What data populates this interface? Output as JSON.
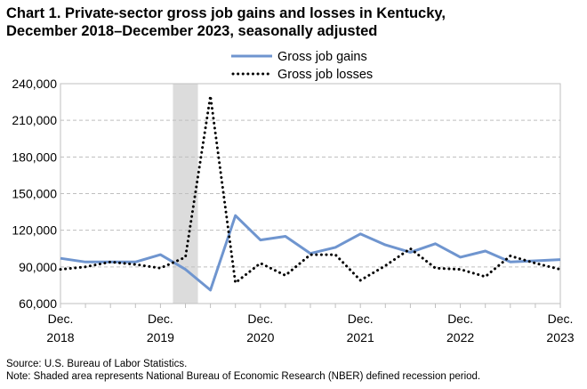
{
  "chart_data": {
    "type": "line",
    "title_line1": "Chart 1. Private-sector gross job gains and losses in Kentucky,",
    "title_line2": "December 2018–December 2023, seasonally adjusted",
    "xlabel": "",
    "ylabel": "",
    "ylim": [
      60000,
      240000
    ],
    "yticks": [
      60000,
      90000,
      120000,
      150000,
      180000,
      210000,
      240000
    ],
    "ytick_labels": [
      "60,000",
      "90,000",
      "120,000",
      "150,000",
      "180,000",
      "210,000",
      "240,000"
    ],
    "xlim": [
      0,
      20
    ],
    "xtick_labels": [
      {
        "month": "Dec.",
        "year": "2018"
      },
      {
        "month": "Dec.",
        "year": "2019"
      },
      {
        "month": "Dec.",
        "year": "2020"
      },
      {
        "month": "Dec.",
        "year": "2021"
      },
      {
        "month": "Dec.",
        "year": "2022"
      },
      {
        "month": "Dec.",
        "year": "2023"
      }
    ],
    "recession_shade": {
      "start": 4.5,
      "end": 5.5
    },
    "grid": "horizontal-dashed",
    "legend_position": "top-center",
    "quarters": [
      "Dec 2018",
      "Mar 2019",
      "Jun 2019",
      "Sep 2019",
      "Dec 2019",
      "Mar 2020",
      "Jun 2020",
      "Sep 2020",
      "Dec 2020",
      "Mar 2021",
      "Jun 2021",
      "Sep 2021",
      "Dec 2021",
      "Mar 2022",
      "Jun 2022",
      "Sep 2022",
      "Dec 2022",
      "Mar 2023",
      "Jun 2023",
      "Sep 2023",
      "Dec 2023"
    ],
    "series": [
      {
        "name": "Gross job gains",
        "style": "solid",
        "color": "#6f95cf",
        "values": [
          97000,
          94000,
          94000,
          94000,
          100000,
          88000,
          71000,
          132000,
          112000,
          115000,
          101000,
          106000,
          117000,
          108000,
          102000,
          109000,
          98000,
          103000,
          94000,
          95000,
          96000
        ]
      },
      {
        "name": "Gross job losses",
        "style": "dotted",
        "color": "#000000",
        "values": [
          88000,
          90000,
          94000,
          92000,
          89000,
          98000,
          230000,
          77000,
          93000,
          83000,
          100000,
          100000,
          79000,
          91000,
          105000,
          89000,
          88000,
          82000,
          99000,
          93000,
          88000
        ]
      }
    ]
  },
  "notes": {
    "source": "Source: U.S. Bureau of Labor Statistics.",
    "note": "Note: Shaded area represents National Bureau of Economic Research (NBER) defined  recession period."
  }
}
